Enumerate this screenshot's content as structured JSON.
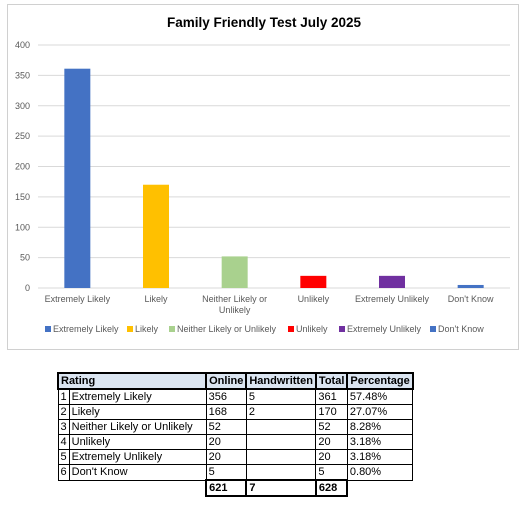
{
  "chart_data": {
    "type": "bar",
    "title": "Family Friendly Test July 2025",
    "categories": [
      "Extremely Likely",
      "Likely",
      "Neither Likely or Unlikely",
      "Unlikely",
      "Extremely Unlikely",
      "Don't Know"
    ],
    "category_lines": [
      [
        "Extremely Likely"
      ],
      [
        "Likely"
      ],
      [
        "Neither Likely or",
        "Unlikely"
      ],
      [
        "Unlikely"
      ],
      [
        "Extremely Unlikely"
      ],
      [
        "Don't Know"
      ]
    ],
    "values": [
      361,
      170,
      52,
      20,
      20,
      5
    ],
    "colors": [
      "#4472c4",
      "#ffc000",
      "#a9d18e",
      "#ff0000",
      "#7030a0",
      "#4472c4"
    ],
    "ylim": [
      0,
      400
    ],
    "yticks": [
      0,
      50,
      100,
      150,
      200,
      250,
      300,
      350,
      400
    ],
    "grid": true,
    "legend_position": "bottom",
    "xlabel": "",
    "ylabel": ""
  },
  "table": {
    "headers": [
      "Rating",
      "Online",
      "Handwritten",
      "Total",
      "Percentage"
    ],
    "rows": [
      {
        "n": "1",
        "rating": "Extremely Likely",
        "online": "356",
        "hw": "5",
        "total": "361",
        "pct": "57.48%"
      },
      {
        "n": "2",
        "rating": "Likely",
        "online": "168",
        "hw": "2",
        "total": "170",
        "pct": "27.07%"
      },
      {
        "n": "3",
        "rating": "Neither Likely or Unlikely",
        "online": "52",
        "hw": "",
        "total": "52",
        "pct": "8.28%"
      },
      {
        "n": "4",
        "rating": "Unlikely",
        "online": "20",
        "hw": "",
        "total": "20",
        "pct": "3.18%"
      },
      {
        "n": "5",
        "rating": "Extremely Unlikely",
        "online": "20",
        "hw": "",
        "total": "20",
        "pct": "3.18%"
      },
      {
        "n": "6",
        "rating": "Don't Know",
        "online": "5",
        "hw": "",
        "total": "5",
        "pct": "0.80%"
      }
    ],
    "totals": {
      "online": "621",
      "hw": "7",
      "total": "628"
    }
  }
}
